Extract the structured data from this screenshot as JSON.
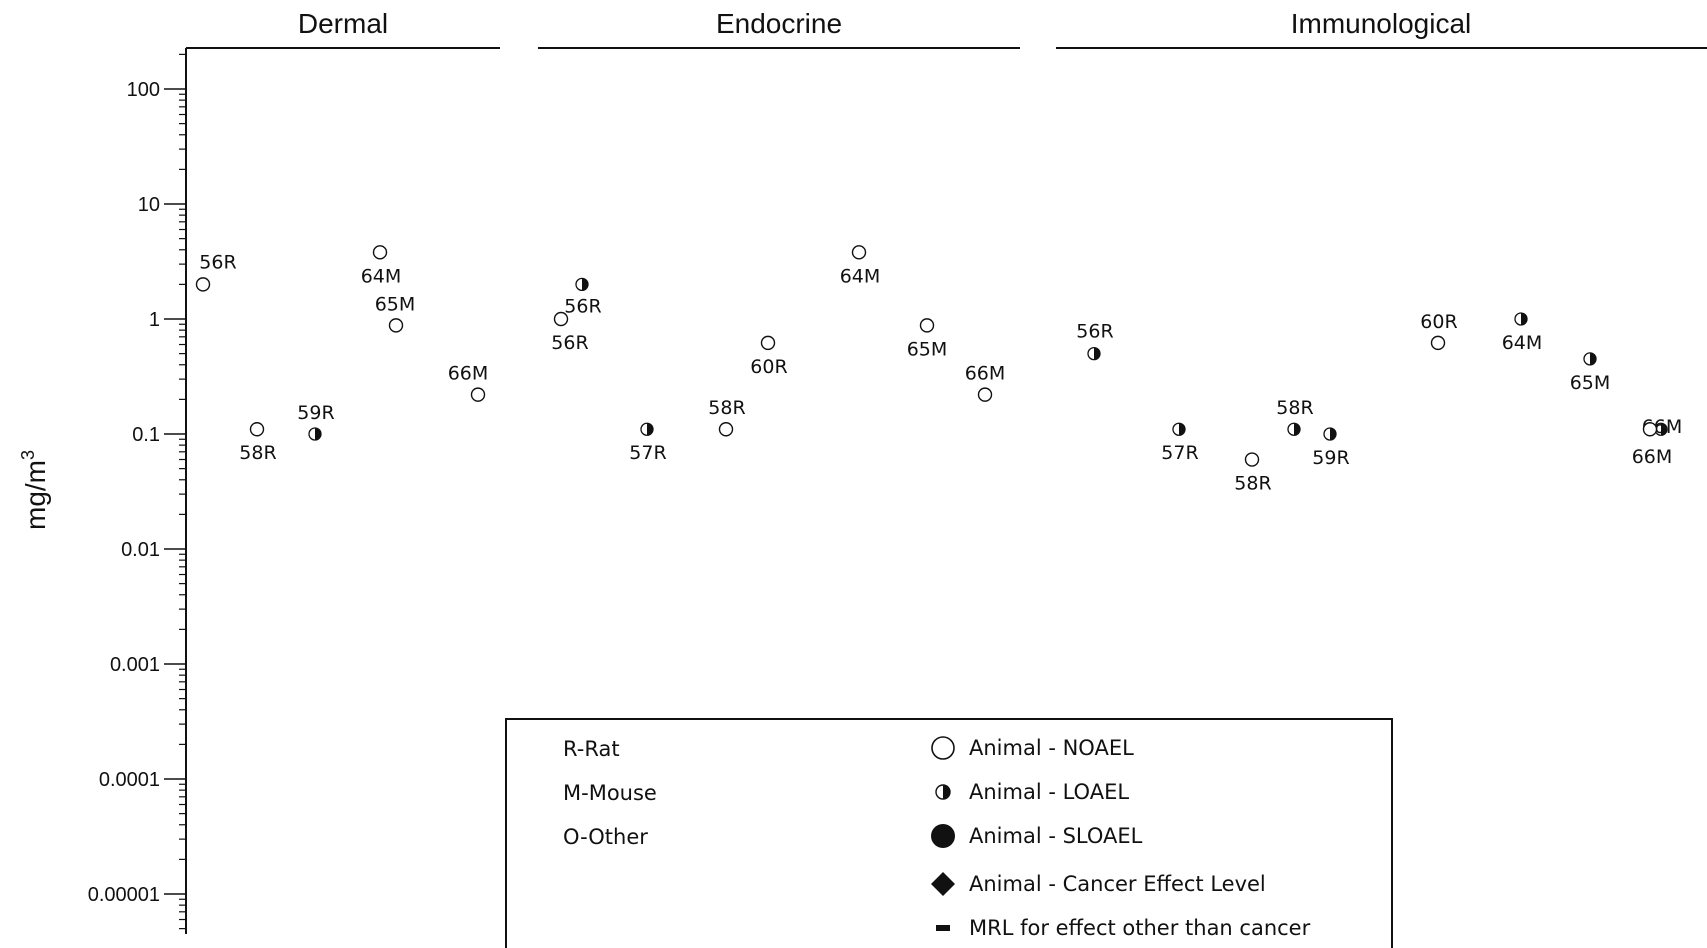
{
  "chart_data": {
    "type": "scatter",
    "ylabel": "mg/m3",
    "yscale": "log",
    "ylim": [
      5e-06,
      200
    ],
    "yticks": [
      100,
      10,
      1,
      0.1,
      0.01,
      0.001,
      0.0001,
      1e-05
    ],
    "ytick_labels": [
      "100",
      "10",
      "1",
      "0.1",
      "0.01",
      "0.001",
      "0.0001",
      "0.00001"
    ],
    "grid": false,
    "panels": [
      {
        "title": "Dermal",
        "points": [
          {
            "label": "56R",
            "value": 2,
            "type": "noael"
          },
          {
            "label": "58R",
            "value": 0.11,
            "type": "noael"
          },
          {
            "label": "59R",
            "value": 0.1,
            "type": "loael"
          },
          {
            "label": "64M",
            "value": 3.8,
            "type": "noael"
          },
          {
            "label": "65M",
            "value": 0.88,
            "type": "noael"
          },
          {
            "label": "66M",
            "value": 0.22,
            "type": "noael"
          }
        ]
      },
      {
        "title": "Endocrine",
        "points": [
          {
            "label": "56R",
            "value": 1,
            "type": "noael"
          },
          {
            "label": "56R",
            "value": 2,
            "type": "loael"
          },
          {
            "label": "57R",
            "value": 0.11,
            "type": "loael"
          },
          {
            "label": "58R",
            "value": 0.11,
            "type": "noael"
          },
          {
            "label": "60R",
            "value": 0.62,
            "type": "noael"
          },
          {
            "label": "64M",
            "value": 3.8,
            "type": "noael"
          },
          {
            "label": "65M",
            "value": 0.88,
            "type": "noael"
          },
          {
            "label": "66M",
            "value": 0.22,
            "type": "noael"
          }
        ]
      },
      {
        "title": "Immunological",
        "points": [
          {
            "label": "56R",
            "value": 0.5,
            "type": "loael"
          },
          {
            "label": "57R",
            "value": 0.11,
            "type": "loael"
          },
          {
            "label": "58R",
            "value": 0.06,
            "type": "noael"
          },
          {
            "label": "58R",
            "value": 0.11,
            "type": "loael"
          },
          {
            "label": "59R",
            "value": 0.1,
            "type": "loael"
          },
          {
            "label": "60R",
            "value": 0.62,
            "type": "noael"
          },
          {
            "label": "64M",
            "value": 1,
            "type": "loael"
          },
          {
            "label": "65M",
            "value": 0.45,
            "type": "loael"
          },
          {
            "label": "66M",
            "value": 0.11,
            "type": "loael"
          },
          {
            "label": "66M",
            "value": 0.11,
            "type": "noael"
          }
        ]
      }
    ],
    "legend": {
      "placement": "bottom-center",
      "species": [
        "R-Rat",
        "M-Mouse",
        "O-Other"
      ],
      "symbols": [
        {
          "label": "Animal - NOAEL",
          "icon": "open-circle-icon"
        },
        {
          "label": "Animal - LOAEL",
          "icon": "half-filled-circle-icon"
        },
        {
          "label": "Animal - SLOAEL",
          "icon": "filled-circle-icon"
        },
        {
          "label": "Animal - Cancer Effect Level",
          "icon": "filled-diamond-icon"
        },
        {
          "label": "MRL for effect other than cancer",
          "icon": "dash-icon"
        }
      ]
    }
  }
}
